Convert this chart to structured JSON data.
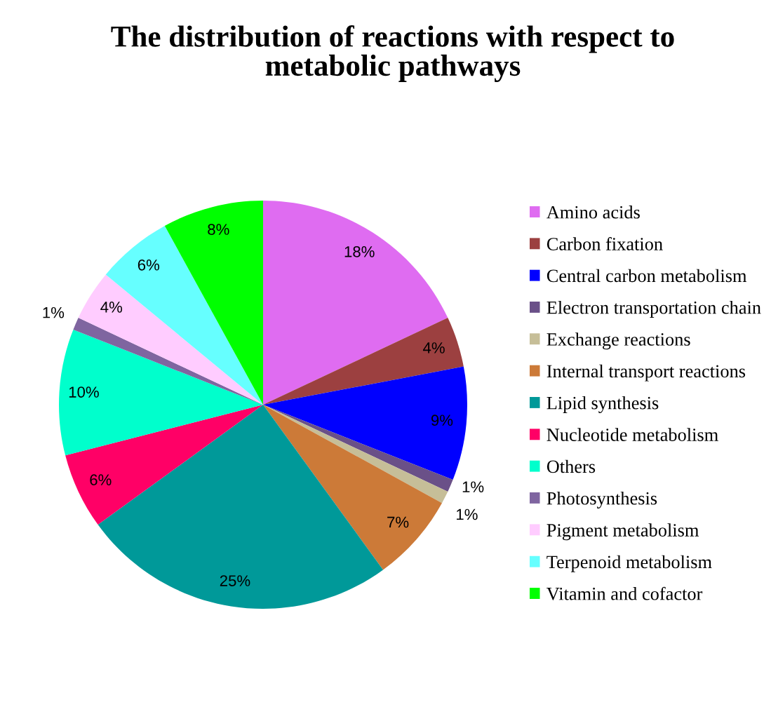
{
  "chart_data": {
    "type": "pie",
    "title": "The distribution of reactions with respect to metabolic pathways",
    "categories": [
      "Amino acids",
      "Carbon fixation",
      "Central carbon metabolism",
      "Electron transportation chain",
      "Exchange reactions",
      "Internal transport reactions",
      "Lipid synthesis",
      "Nucleotide metabolism",
      "Others",
      "Photosynthesis",
      "Pigment metabolism",
      "Terpenoid metabolism",
      "Vitamin and cofactor"
    ],
    "values": [
      18,
      4,
      9,
      1,
      1,
      7,
      25,
      6,
      10,
      1,
      4,
      6,
      8
    ],
    "colors": [
      "#df6cf1",
      "#9c4040",
      "#0000ff",
      "#6a5088",
      "#c6be98",
      "#cc7a38",
      "#009999",
      "#ff0066",
      "#00ffcc",
      "#7f65a0",
      "#ffccff",
      "#66ffff",
      "#00ff00"
    ],
    "value_labels": [
      "18%",
      "4%",
      "9%",
      "1%",
      "1%",
      "7%",
      "25%",
      "6%",
      "10%",
      "1%",
      "4%",
      "6%",
      "8%"
    ],
    "legend": "right"
  }
}
